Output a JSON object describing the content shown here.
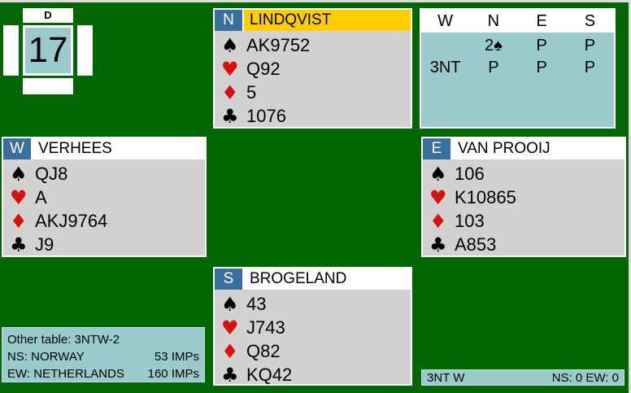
{
  "board": {
    "number": "17",
    "dealer_label": "D"
  },
  "icons": {
    "spade": "♠",
    "heart": "♥",
    "diamond": "♦",
    "club": "♣"
  },
  "players": {
    "north": {
      "seat": "N",
      "name": "LINDQVIST",
      "holding": {
        "spades": "AK9752",
        "hearts": "Q92",
        "diamonds": "5",
        "clubs": "1076"
      }
    },
    "west": {
      "seat": "W",
      "name": "VERHEES",
      "holding": {
        "spades": "QJ8",
        "hearts": "A",
        "diamonds": "AKJ9764",
        "clubs": "J9"
      }
    },
    "east": {
      "seat": "E",
      "name": "VAN PROOIJ",
      "holding": {
        "spades": "106",
        "hearts": "K10865",
        "diamonds": "103",
        "clubs": "A853"
      }
    },
    "south": {
      "seat": "S",
      "name": "BROGELAND",
      "holding": {
        "spades": "43",
        "hearts": "J743",
        "diamonds": "Q82",
        "clubs": "KQ42"
      }
    }
  },
  "bidding": {
    "columns": [
      "W",
      "N",
      "E",
      "S"
    ],
    "rows": [
      [
        "",
        "2♠",
        "P",
        "P"
      ],
      [
        "3NT",
        "P",
        "P",
        "P"
      ]
    ]
  },
  "match": {
    "other_table_label": "Other table: 3NTW-2",
    "ns_team": "NS: NORWAY",
    "ns_imps": "53 IMPs",
    "ew_team": "EW: NETHERLANDS",
    "ew_imps": "160 IMPs"
  },
  "status": {
    "contract": "3NT W",
    "score": "NS: 0 EW: 0"
  },
  "colors": {
    "felt_green": "#006600",
    "teal": "#99CACC",
    "hand_gray": "#D2D2D2",
    "seat_blue": "#3A6E9C",
    "name_gold": "#FFCC00",
    "suit_red": "#D81010"
  }
}
